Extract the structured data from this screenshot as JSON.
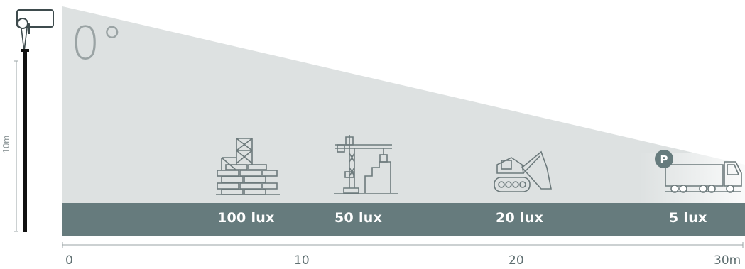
{
  "diagram": {
    "angle": "0°",
    "pole_height_label": "10m",
    "zones": [
      {
        "lux": "100 lux",
        "icon": "construction-brick-wall-icon"
      },
      {
        "lux": "50 lux",
        "icon": "tower-crane-icon"
      },
      {
        "lux": "20 lux",
        "icon": "excavator-icon"
      },
      {
        "lux": "5 lux",
        "icon": "parked-truck-icon"
      }
    ],
    "parking_badge": "P",
    "axis": {
      "ticks": [
        "0",
        "10",
        "20",
        "30m"
      ]
    },
    "colors": {
      "light_beam": "#dde1e1",
      "ground_bar": "#667b7d",
      "icon_stroke": "#6d7a7c",
      "pole": "#111111"
    }
  }
}
